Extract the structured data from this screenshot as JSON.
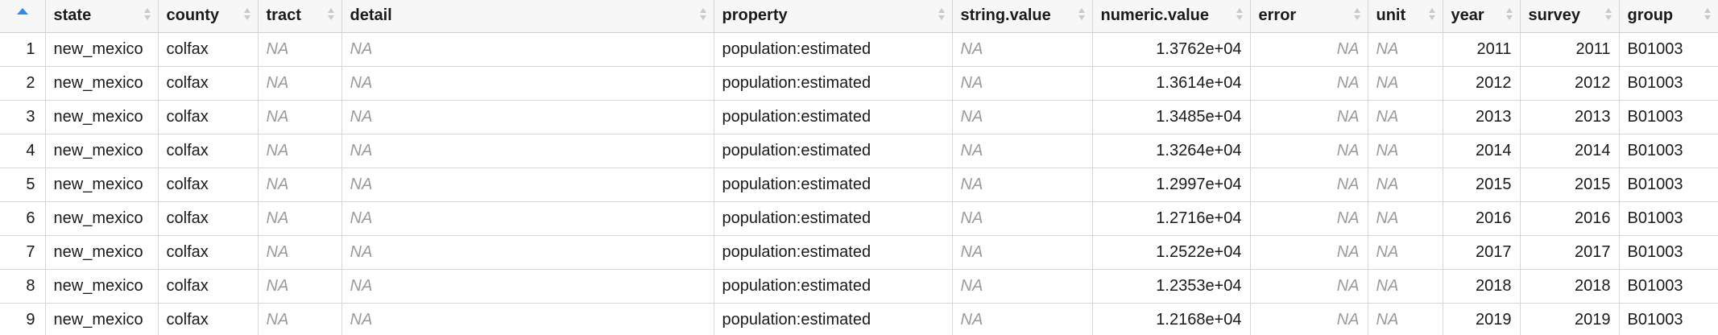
{
  "table": {
    "columns": [
      {
        "key": "state",
        "label": "state",
        "align": "left"
      },
      {
        "key": "county",
        "label": "county",
        "align": "left"
      },
      {
        "key": "tract",
        "label": "tract",
        "align": "left"
      },
      {
        "key": "detail",
        "label": "detail",
        "align": "left"
      },
      {
        "key": "property",
        "label": "property",
        "align": "left"
      },
      {
        "key": "string_value",
        "label": "string.value",
        "align": "left"
      },
      {
        "key": "numeric_value",
        "label": "numeric.value",
        "align": "right"
      },
      {
        "key": "error",
        "label": "error",
        "align": "right"
      },
      {
        "key": "unit",
        "label": "unit",
        "align": "left"
      },
      {
        "key": "year",
        "label": "year",
        "align": "right"
      },
      {
        "key": "survey",
        "label": "survey",
        "align": "right"
      },
      {
        "key": "group",
        "label": "group",
        "align": "left"
      }
    ],
    "rows": [
      {
        "num": "1",
        "cells": [
          "new_mexico",
          "colfax",
          "NA",
          "NA",
          "population:estimated",
          "NA",
          "1.3762e+04",
          "NA",
          "NA",
          "2011",
          "2011",
          "B01003"
        ]
      },
      {
        "num": "2",
        "cells": [
          "new_mexico",
          "colfax",
          "NA",
          "NA",
          "population:estimated",
          "NA",
          "1.3614e+04",
          "NA",
          "NA",
          "2012",
          "2012",
          "B01003"
        ]
      },
      {
        "num": "3",
        "cells": [
          "new_mexico",
          "colfax",
          "NA",
          "NA",
          "population:estimated",
          "NA",
          "1.3485e+04",
          "NA",
          "NA",
          "2013",
          "2013",
          "B01003"
        ]
      },
      {
        "num": "4",
        "cells": [
          "new_mexico",
          "colfax",
          "NA",
          "NA",
          "population:estimated",
          "NA",
          "1.3264e+04",
          "NA",
          "NA",
          "2014",
          "2014",
          "B01003"
        ]
      },
      {
        "num": "5",
        "cells": [
          "new_mexico",
          "colfax",
          "NA",
          "NA",
          "population:estimated",
          "NA",
          "1.2997e+04",
          "NA",
          "NA",
          "2015",
          "2015",
          "B01003"
        ]
      },
      {
        "num": "6",
        "cells": [
          "new_mexico",
          "colfax",
          "NA",
          "NA",
          "population:estimated",
          "NA",
          "1.2716e+04",
          "NA",
          "NA",
          "2016",
          "2016",
          "B01003"
        ]
      },
      {
        "num": "7",
        "cells": [
          "new_mexico",
          "colfax",
          "NA",
          "NA",
          "population:estimated",
          "NA",
          "1.2522e+04",
          "NA",
          "NA",
          "2017",
          "2017",
          "B01003"
        ]
      },
      {
        "num": "8",
        "cells": [
          "new_mexico",
          "colfax",
          "NA",
          "NA",
          "population:estimated",
          "NA",
          "1.2353e+04",
          "NA",
          "NA",
          "2018",
          "2018",
          "B01003"
        ]
      },
      {
        "num": "9",
        "cells": [
          "new_mexico",
          "colfax",
          "NA",
          "NA",
          "population:estimated",
          "NA",
          "1.2168e+04",
          "NA",
          "NA",
          "2019",
          "2019",
          "B01003"
        ]
      }
    ],
    "na_color": "#9a9a9a",
    "sort_active_color": "#2f8be6"
  }
}
